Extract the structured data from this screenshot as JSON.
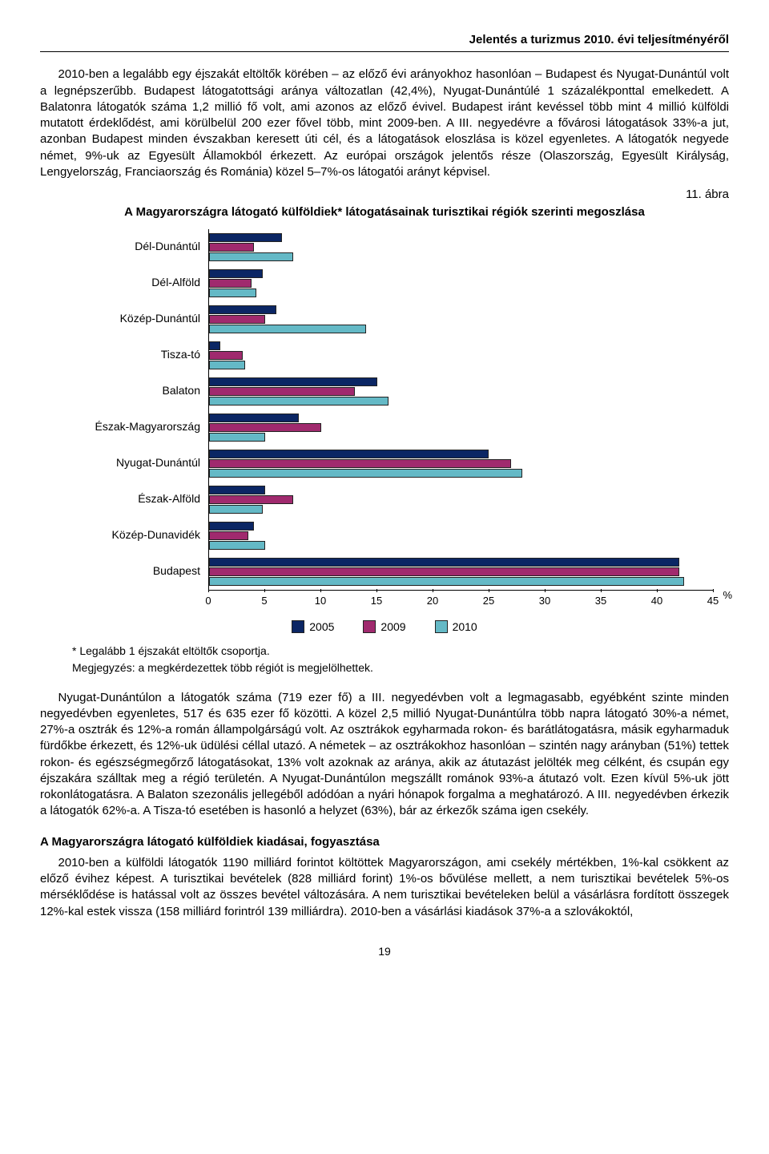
{
  "header": {
    "title": "Jelentés a turizmus 2010. évi teljesítményéről"
  },
  "paragraph1": "2010-ben a legalább egy éjszakát eltöltők körében – az előző évi arányokhoz hasonlóan – Budapest és Nyugat-Dunántúl volt a legnépszerűbb. Budapest látogatottsági aránya változatlan (42,4%), Nyugat-Dunántúlé 1 százalékponttal emelkedett. A Balatonra látogatók száma 1,2 millió fő volt, ami azonos az előző évivel. Budapest iránt kevéssel több mint 4 millió külföldi mutatott érdeklődést, ami körülbelül 200 ezer fővel több, mint 2009-ben. A III. negyedévre a fővárosi látogatások 33%-a jut, azonban Budapest minden évszakban keresett úti cél, és a látogatások eloszlása is közel egyenletes. A látogatók negyede német, 9%-uk az Egyesült Államokból érkezett. Az európai országok jelentős része (Olaszország, Egyesült Királyság, Lengyelország, Franciaország és Románia) közel 5–7%-os látogatói arányt képvisel.",
  "figure": {
    "label": "11. ábra",
    "title": "A Magyarországra látogató külföldiek* látogatásainak turisztikai régiók szerinti megoszlása",
    "type": "bar-horizontal-grouped",
    "x_max": 45,
    "x_tick_step": 5,
    "x_unit": "%",
    "series": [
      {
        "name": "2005",
        "color": "#0b2664"
      },
      {
        "name": "2009",
        "color": "#a02a6e"
      },
      {
        "name": "2010",
        "color": "#64b9c6"
      }
    ],
    "categories": [
      {
        "label": "Dél-Dunántúl",
        "values": [
          6.5,
          4.0,
          7.5
        ]
      },
      {
        "label": "Dél-Alföld",
        "values": [
          4.8,
          3.8,
          4.2
        ]
      },
      {
        "label": "Közép-Dunántúl",
        "values": [
          6.0,
          5.0,
          14.0
        ]
      },
      {
        "label": "Tisza-tó",
        "values": [
          1.0,
          3.0,
          3.2
        ]
      },
      {
        "label": "Balaton",
        "values": [
          15.0,
          13.0,
          16.0
        ]
      },
      {
        "label": "Észak-Magyarország",
        "values": [
          8.0,
          10.0,
          5.0
        ]
      },
      {
        "label": "Nyugat-Dunántúl",
        "values": [
          25.0,
          27.0,
          28.0
        ]
      },
      {
        "label": "Észak-Alföld",
        "values": [
          5.0,
          7.5,
          4.8
        ]
      },
      {
        "label": "Közép-Dunavidék",
        "values": [
          4.0,
          3.5,
          5.0
        ]
      },
      {
        "label": "Budapest",
        "values": [
          42.0,
          42.0,
          42.4
        ]
      }
    ],
    "footnote1": "* Legalább 1 éjszakát eltöltők csoportja.",
    "footnote2": "Megjegyzés:  a megkérdezettek több régiót is megjelölhettek."
  },
  "paragraph2": "Nyugat-Dunántúlon a látogatók száma (719 ezer fő) a III. negyedévben volt a legmagasabb, egyébként szinte minden negyedévben egyenletes, 517 és 635 ezer fő közötti. A közel 2,5 millió Nyugat-Dunántúlra több napra látogató 30%-a német, 27%-a osztrák és 12%-a román állampolgárságú volt. Az osztrákok egyharmada rokon- és barátlátogatásra, másik egyharmaduk fürdőkbe érkezett, és 12%-uk üdülési céllal utazó. A németek – az osztrákokhoz hasonlóan – szintén nagy arányban (51%) tettek rokon- és egészségmegőrző látogatásokat, 13% volt azoknak az aránya, akik az átutazást jelölték meg célként, és csupán egy éjszakára szálltak meg a régió területén. A Nyugat-Dunántúlon megszállt románok 93%-a átutazó volt. Ezen kívül 5%-uk jött rokonlátogatásra. A Balaton szezonális jellegéből adódóan a nyári hónapok forgalma a meghatározó. A III. negyedévben érkezik a látogatók 62%-a. A Tisza-tó esetében is hasonló a helyzet (63%), bár az érkezők száma igen csekély.",
  "section_heading": "A Magyarországra látogató külföldiek kiadásai, fogyasztása",
  "paragraph3": "2010-ben a külföldi látogatók 1190 milliárd forintot költöttek Magyarországon, ami csekély mértékben, 1%-kal csökkent az előző évihez képest. A turisztikai bevételek (828 milliárd forint) 1%-os bővülése mellett, a nem turisztikai bevételek 5%-os mérséklődése is hatással volt az összes bevétel változására.  A nem turisztikai bevételeken belül a vásárlásra fordított összegek 12%-kal estek vissza (158 milliárd forintról 139 milliárdra). 2010-ben a vásárlási kiadások 37%-a a szlovákoktól,",
  "page_number": "19"
}
